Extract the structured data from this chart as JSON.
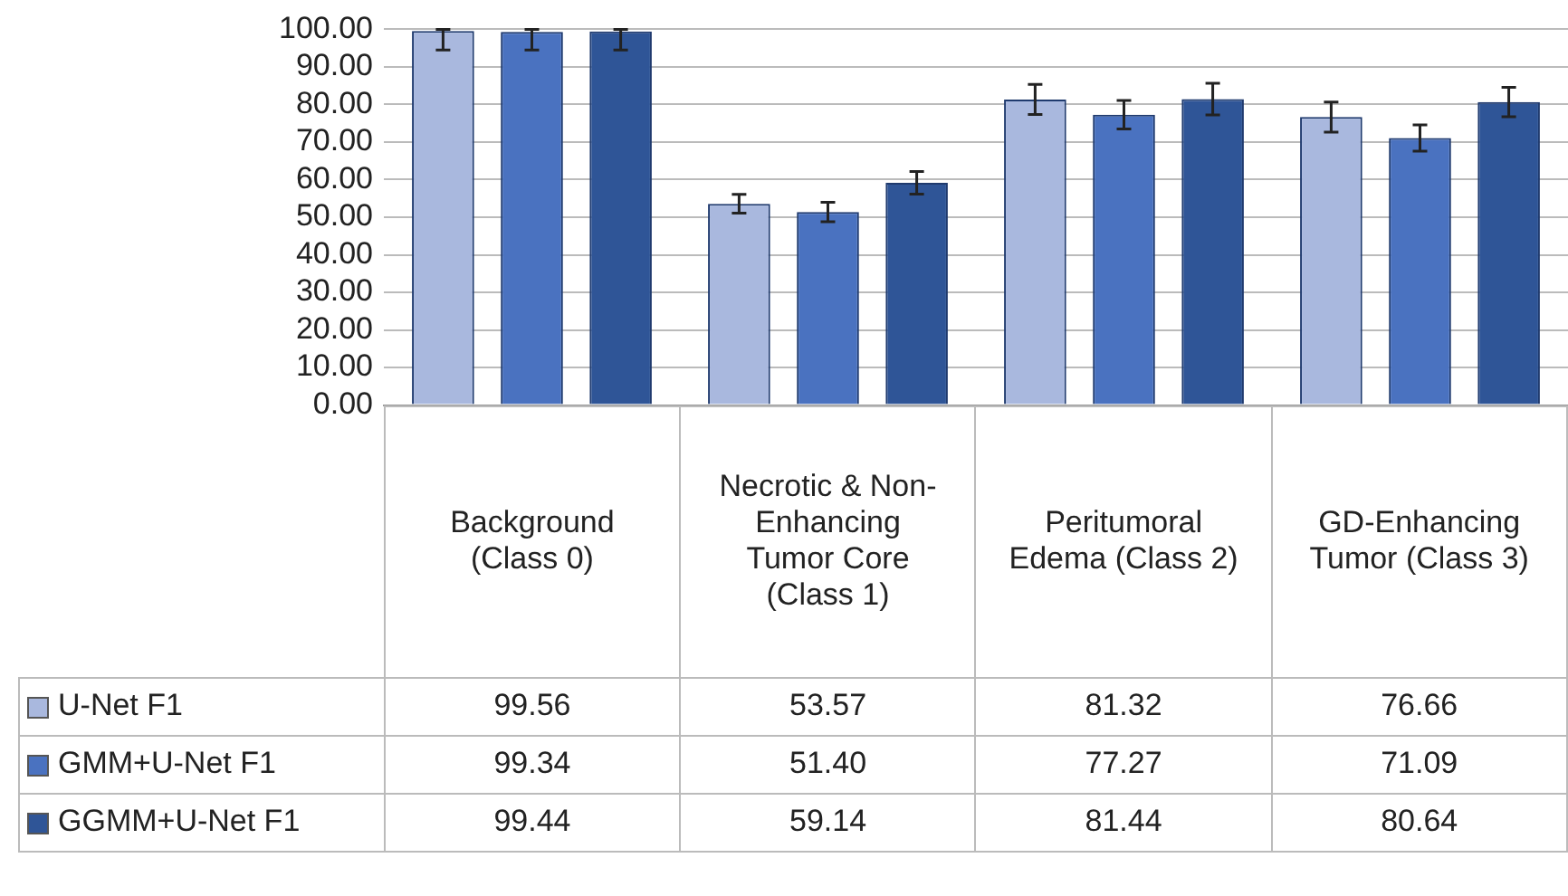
{
  "chart_data": {
    "type": "bar",
    "categories": [
      "Background (Class 0)",
      "Necrotic & Non-Enhancing Tumor Core (Class 1)",
      "Peritumoral Edema (Class 2)",
      "GD-Enhancing Tumor (Class 3)"
    ],
    "series": [
      {
        "name": "U-Net F1",
        "color": "#a9b8de",
        "values": [
          99.56,
          53.57,
          81.32,
          76.66
        ],
        "value_labels": [
          "99.56",
          "53.57",
          "81.32",
          "76.66"
        ],
        "errors": [
          [
            94.5,
            100
          ],
          2.5,
          4,
          4
        ]
      },
      {
        "name": "GMM+U-Net F1",
        "color": "#4a72c0",
        "values": [
          99.34,
          51.4,
          77.27,
          71.09
        ],
        "value_labels": [
          "99.34",
          "51.40",
          "77.27",
          "71.09"
        ],
        "errors": [
          [
            94.5,
            100
          ],
          2.6,
          3.8,
          3.5
        ]
      },
      {
        "name": "GGMM+U-Net F1",
        "color": "#2f5597",
        "values": [
          99.44,
          59.14,
          81.44,
          80.64
        ],
        "value_labels": [
          "99.44",
          "59.14",
          "81.44",
          "80.64"
        ],
        "errors": [
          [
            94.5,
            100
          ],
          3,
          4.2,
          3.9
        ]
      }
    ],
    "ylim": [
      0,
      100
    ],
    "yticks": [
      {
        "value": 0,
        "label": "0.00"
      },
      {
        "value": 10,
        "label": "10.00"
      },
      {
        "value": 20,
        "label": "20.00"
      },
      {
        "value": 30,
        "label": "30.00"
      },
      {
        "value": 40,
        "label": "40.00"
      },
      {
        "value": 50,
        "label": "50.00"
      },
      {
        "value": 60,
        "label": "60.00"
      },
      {
        "value": 70,
        "label": "70.00"
      },
      {
        "value": 80,
        "label": "80.00"
      },
      {
        "value": 90,
        "label": "90.00"
      },
      {
        "value": 100,
        "label": "100.00"
      }
    ],
    "grid": "y",
    "legend": "bottom"
  }
}
